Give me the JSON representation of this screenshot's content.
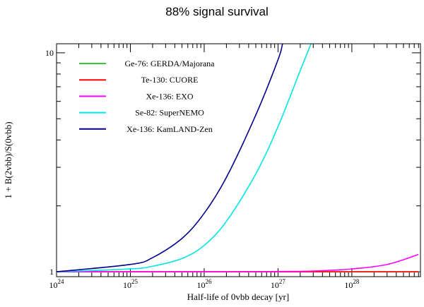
{
  "chart_data": {
    "type": "line",
    "title": "88% signal survival",
    "xlabel": "Half-life of 0vbb decay [yr]",
    "ylabel": "1 + B(2vbb)/S(0vbb)",
    "x_scale": "log",
    "y_scale": "log",
    "xlim": [
      1e+24,
      8.5e+28
    ],
    "ylim": [
      0.95,
      11
    ],
    "x_major_ticks": [
      {
        "value": 1e+24,
        "base": "10",
        "exp": "24"
      },
      {
        "value": 1e+25,
        "base": "10",
        "exp": "25"
      },
      {
        "value": 1e+26,
        "base": "10",
        "exp": "26"
      },
      {
        "value": 1e+27,
        "base": "10",
        "exp": "27"
      },
      {
        "value": 1e+28,
        "base": "10",
        "exp": "28"
      }
    ],
    "y_major_ticks": [
      {
        "value": 1,
        "label": "1"
      },
      {
        "value": 10,
        "label": "10"
      }
    ],
    "legend_position": "top-left",
    "series": [
      {
        "name": "Ge-76: GERDA/Majorana",
        "color": "#33cc33",
        "x": [
          1e+24,
          1e+25,
          1e+26,
          1e+27,
          1e+28,
          8e+28
        ],
        "y": [
          1.0,
          1.0,
          1.0,
          1.0,
          1.0,
          1.0
        ]
      },
      {
        "name": "Te-130: CUORE",
        "color": "#ff0000",
        "x": [
          1e+24,
          1e+25,
          1e+26,
          1e+27,
          1e+28,
          8e+28
        ],
        "y": [
          1.0,
          1.0,
          1.0,
          1.0,
          1.0,
          1.0
        ]
      },
      {
        "name": "Xe-136: EXO",
        "color": "#ff00ff",
        "x": [
          1e+24,
          1e+25,
          1e+26,
          1e+27,
          3e+27,
          1e+28,
          3e+28,
          8e+28
        ],
        "y": [
          1.0,
          1.0,
          1.0,
          1.003,
          1.008,
          1.03,
          1.08,
          1.2
        ]
      },
      {
        "name": "Se-82: SuperNEMO",
        "color": "#00e5e5",
        "x": [
          1e+24,
          1e+25,
          2e+25,
          5e+25,
          1e+26,
          2e+26,
          5e+26,
          1e+27,
          2e+27,
          2.8e+27
        ],
        "y": [
          1.0,
          1.03,
          1.06,
          1.15,
          1.32,
          1.7,
          2.8,
          4.6,
          8.3,
          11.0
        ]
      },
      {
        "name": "Xe-136: KamLAND-Zen",
        "color": "#00008b",
        "x": [
          1e+24,
          1e+25,
          2e+25,
          5e+25,
          1e+26,
          2e+26,
          5e+26,
          1e+27,
          1.15e+27
        ],
        "y": [
          1.0,
          1.08,
          1.16,
          1.42,
          1.85,
          2.7,
          5.2,
          9.3,
          11.0
        ]
      }
    ]
  }
}
